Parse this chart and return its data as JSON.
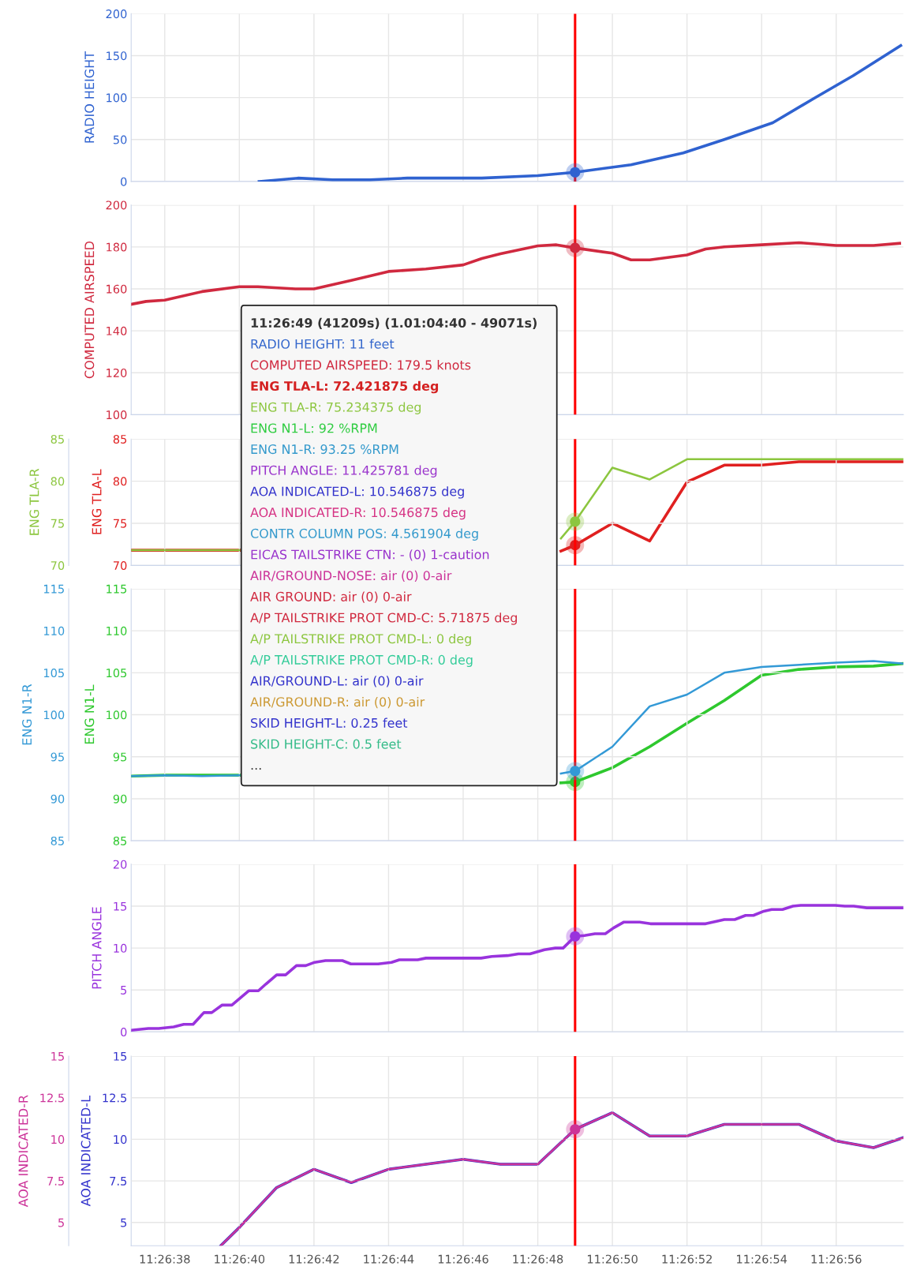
{
  "chart_data": [
    {
      "type": "line",
      "ylabel": "RADIO HEIGHT",
      "xlim": [
        41197.1,
        41217.8
      ],
      "xticks": [
        {
          "value": 41198,
          "label": null
        },
        {
          "value": 41200,
          "label": null
        },
        {
          "value": 41202,
          "label": null
        },
        {
          "value": 41204,
          "label": null
        },
        {
          "value": 41206,
          "label": null
        },
        {
          "value": 41208,
          "label": null
        },
        {
          "value": 41210,
          "label": null
        },
        {
          "value": 41212,
          "label": null
        },
        {
          "value": 41214,
          "label": null
        },
        {
          "value": 41216,
          "label": null
        }
      ],
      "ylim": [
        0,
        200
      ],
      "yticks": [
        0,
        50,
        100,
        150,
        200
      ],
      "grid": true,
      "tick_labels": "y",
      "ref_lines": [
        {
          "axis": "x",
          "value": 41209,
          "color": "#ff0000"
        }
      ],
      "series": [
        {
          "color": "#2f62d0",
          "x": [
            41200.53,
            41201.57,
            41202.5,
            41203.5,
            41204.5,
            41206.5,
            41208,
            41209,
            41210.5,
            41211.9,
            41213,
            41214.3,
            41215.4,
            41216.45,
            41217.73
          ],
          "values": [
            0,
            4,
            2,
            2,
            4,
            4,
            7,
            11,
            20,
            34,
            50,
            70,
            99,
            126,
            162
          ]
        },
        {
          "type": "scatter",
          "color": "#2f62d0",
          "x": [
            41209
          ],
          "values": [
            11
          ]
        }
      ]
    },
    {
      "type": "line",
      "ylabel": "COMPUTED AIRSPEED",
      "xlim": [
        41197.1,
        41217.8
      ],
      "xticks": [
        {
          "value": 41198,
          "label": null
        },
        {
          "value": 41200,
          "label": null
        },
        {
          "value": 41202,
          "label": null
        },
        {
          "value": 41204,
          "label": null
        },
        {
          "value": 41206,
          "label": null
        },
        {
          "value": 41208,
          "label": null
        },
        {
          "value": 41210,
          "label": null
        },
        {
          "value": 41212,
          "label": null
        },
        {
          "value": 41214,
          "label": null
        },
        {
          "value": 41216,
          "label": null
        }
      ],
      "ylim": [
        100,
        200
      ],
      "yticks": [
        100,
        120,
        140,
        160,
        180,
        200
      ],
      "grid": true,
      "tick_labels": "y",
      "ref_lines": [
        {
          "axis": "x",
          "value": 41209,
          "color": "#ff0000"
        }
      ],
      "series": [
        {
          "color": "#d0293f",
          "x": [
            41197.12,
            41197.5,
            41198,
            41199,
            41200,
            41200.5,
            41201.5,
            41202,
            41203,
            41204,
            41205,
            41206,
            41206.5,
            41207,
            41207.6,
            41208,
            41208.5,
            41209,
            41210,
            41210.5,
            41211,
            41212,
            41212.5,
            41213,
            41214,
            41215,
            41216,
            41217,
            41217.7
          ],
          "values": [
            152.7,
            154,
            154.6,
            158.7,
            161,
            161,
            160,
            160,
            164,
            168.3,
            169.5,
            171.4,
            174.5,
            176.7,
            179,
            180.5,
            181,
            179.5,
            177,
            173.8,
            173.8,
            176.2,
            179,
            180,
            181,
            182,
            180.7,
            180.7,
            181.7
          ]
        },
        {
          "type": "scatter",
          "color": "#d0293f",
          "x": [
            41209
          ],
          "values": [
            179.5
          ]
        }
      ],
      "annotations": [
        "11:26:49 (41209s) (1.01:04:40 - 49071s)",
        "RADIO HEIGHT: 11 feet",
        "COMPUTED AIRSPEED: 179.5 knots",
        "ENG TLA-L: 72.421875 deg",
        "ENG TLA-R: 75.234375 deg",
        "ENG N1-L: 92 %RPM",
        "ENG N1-R: 93.25 %RPM",
        "PITCH ANGLE: 11.425781 deg",
        "AOA INDICATED-L: 10.546875 deg",
        "AOA INDICATED-R: 10.546875 deg",
        "CONTR COLUMN POS: 4.561904 deg",
        "EICAS TAILSTRIKE CTN: - (0) 1-caution",
        "AIR/GROUND-NOSE: air (0) 0-air",
        "AIR GROUND: air (0) 0-air",
        "A/P TAILSTRIKE PROT CMD-C: 5.71875 deg",
        "A/P TAILSTRIKE PROT CMD-L: 0 deg",
        "A/P TAILSTRIKE PROT CMD-R: 0 deg",
        "AIR/GROUND-L: air (0) 0-air",
        "AIR/GROUND-R: air (0) 0-air",
        "SKID HEIGHT-L: 0.25 feet",
        "SKID HEIGHT-C: 0.5 feet",
        "..."
      ]
    },
    {
      "type": "line",
      "ylabel": "ENG TLA-R",
      "y2label": "ENG TLA-L",
      "xlim": [
        41197.1,
        41217.8
      ],
      "xticks": [
        {
          "value": 41198,
          "label": null
        },
        {
          "value": 41200,
          "label": null
        },
        {
          "value": 41202,
          "label": null
        },
        {
          "value": 41204,
          "label": null
        },
        {
          "value": 41206,
          "label": null
        },
        {
          "value": 41208,
          "label": null
        },
        {
          "value": 41210,
          "label": null
        },
        {
          "value": 41212,
          "label": null
        },
        {
          "value": 41214,
          "label": null
        },
        {
          "value": 41216,
          "label": null
        }
      ],
      "ylim": [
        70,
        85
      ],
      "yticks": [
        70,
        75,
        80,
        85
      ],
      "y2lim": [
        70,
        85
      ],
      "y2ticks": [
        70,
        75,
        80,
        85
      ],
      "grid": true,
      "tick_labels": "y",
      "ref_lines": [
        {
          "axis": "x",
          "value": 41209,
          "color": "#ff0000"
        }
      ],
      "series": [
        {
          "color": "#8cc63f",
          "x": [
            41197.1,
            41200,
            41204,
            41208.62,
            41209,
            41210,
            41211,
            41212,
            41217.8
          ],
          "values": [
            71.8,
            71.8,
            null,
            73.2,
            75.2,
            81.6,
            80.2,
            82.6,
            82.6
          ]
        },
        {
          "color": "#e02020",
          "axis": "y2",
          "x": [
            41197.1,
            41200,
            41204,
            41208.62,
            41209,
            41210,
            41211,
            41212,
            41213,
            41214,
            41215,
            41217.8
          ],
          "values": [
            71.8,
            71.8,
            null,
            71.7,
            72.4,
            75,
            72.9,
            79.9,
            81.9,
            81.9,
            82.3,
            82.3
          ]
        },
        {
          "type": "scatter",
          "color": "#8cc63f",
          "x": [
            41209
          ],
          "values": [
            75.2
          ]
        },
        {
          "type": "scatter",
          "color": "#e02020",
          "axis": "y2",
          "x": [
            41209
          ],
          "values": [
            72.4
          ]
        }
      ]
    },
    {
      "type": "line",
      "ylabel": "ENG N1-R",
      "y2label": "ENG N1-L",
      "xlim": [
        41197.1,
        41217.8
      ],
      "xticks": [
        {
          "value": 41198,
          "label": null
        },
        {
          "value": 41200,
          "label": null
        },
        {
          "value": 41202,
          "label": null
        },
        {
          "value": 41204,
          "label": null
        },
        {
          "value": 41206,
          "label": null
        },
        {
          "value": 41208,
          "label": null
        },
        {
          "value": 41210,
          "label": null
        },
        {
          "value": 41212,
          "label": null
        },
        {
          "value": 41214,
          "label": null
        },
        {
          "value": 41216,
          "label": null
        }
      ],
      "ylim": [
        85,
        115
      ],
      "yticks": [
        85,
        90,
        95,
        100,
        105,
        110,
        115
      ],
      "y2lim": [
        85,
        115
      ],
      "y2ticks": [
        85,
        90,
        95,
        100,
        105,
        110,
        115
      ],
      "grid": true,
      "tick_labels": "y",
      "ref_lines": [
        {
          "axis": "x",
          "value": 41209,
          "color": "#ff0000"
        }
      ],
      "series": [
        {
          "color": "#3399d6",
          "x": [
            41197.1,
            41198,
            41199,
            41200,
            41204,
            41208.62,
            41209,
            41210,
            41211,
            41212,
            41213,
            41214,
            41216,
            41217,
            41217.8
          ],
          "values": [
            92.7,
            92.8,
            92.7,
            92.8,
            null,
            93.0,
            93.3,
            96.2,
            101,
            102.4,
            105,
            105.7,
            106.2,
            106.4,
            106.1
          ]
        },
        {
          "color": "#2ec82e",
          "axis": "y2",
          "x": [
            41197.1,
            41198,
            41200,
            41204,
            41208.62,
            41209,
            41210,
            41211,
            41212,
            41213,
            41214,
            41215,
            41216,
            41217,
            41217.8
          ],
          "values": [
            92.7,
            92.8,
            92.8,
            null,
            91.9,
            92.0,
            93.7,
            96.2,
            99,
            101.7,
            104.7,
            105.4,
            105.7,
            105.8,
            106.1
          ]
        },
        {
          "type": "scatter",
          "color": "#3399d6",
          "x": [
            41209
          ],
          "values": [
            93.3
          ]
        },
        {
          "type": "scatter",
          "color": "#2ec82e",
          "axis": "y2",
          "x": [
            41209
          ],
          "values": [
            92.0
          ]
        }
      ]
    },
    {
      "type": "line",
      "ylabel": "PITCH ANGLE",
      "xlim": [
        41197.1,
        41217.8
      ],
      "xticks": [
        {
          "value": 41198,
          "label": null
        },
        {
          "value": 41200,
          "label": null
        },
        {
          "value": 41202,
          "label": null
        },
        {
          "value": 41204,
          "label": null
        },
        {
          "value": 41206,
          "label": null
        },
        {
          "value": 41208,
          "label": null
        },
        {
          "value": 41210,
          "label": null
        },
        {
          "value": 41212,
          "label": null
        },
        {
          "value": 41214,
          "label": null
        },
        {
          "value": 41216,
          "label": null
        }
      ],
      "ylim": [
        0,
        20
      ],
      "yticks": [
        0,
        5,
        10,
        15,
        20
      ],
      "grid": true,
      "tick_labels": "y",
      "ref_lines": [
        {
          "axis": "x",
          "value": 41209,
          "color": "#ff0000"
        }
      ],
      "series": [
        {
          "color": "#9933dd",
          "x": [
            41197.1,
            41197.56,
            41197.84,
            41198.24,
            41198.51,
            41198.76,
            41199.05,
            41199.26,
            41199.54,
            41199.8,
            41200.25,
            41200.51,
            41200.71,
            41201.0,
            41201.24,
            41201.53,
            41201.78,
            41202.02,
            41202.31,
            41202.76,
            41202.99,
            41203.72,
            41204.08,
            41204.29,
            41204.78,
            41205.0,
            41206.48,
            41206.77,
            41207.19,
            41207.48,
            41207.79,
            41208.18,
            41208.47,
            41208.68,
            41209,
            41209.25,
            41209.53,
            41209.81,
            41210.03,
            41210.31,
            41210.73,
            41211.02,
            41212.5,
            41212.79,
            41213.0,
            41213.28,
            41213.57,
            41213.78,
            41214.06,
            41214.27,
            41214.56,
            41214.84,
            41215.05,
            41215.97,
            41216.23,
            41216.47,
            41216.82,
            41217.8
          ],
          "values": [
            0.2,
            0.4,
            0.4,
            0.6,
            0.9,
            0.9,
            2.3,
            2.3,
            3.2,
            3.2,
            4.9,
            4.9,
            5.7,
            6.8,
            6.8,
            7.9,
            7.9,
            8.3,
            8.5,
            8.5,
            8.1,
            8.1,
            8.3,
            8.6,
            8.6,
            8.8,
            8.8,
            9.0,
            9.1,
            9.3,
            9.3,
            9.8,
            10.0,
            10.0,
            11.4,
            11.5,
            11.7,
            11.7,
            12.4,
            13.1,
            13.1,
            12.9,
            12.9,
            13.2,
            13.4,
            13.4,
            13.9,
            13.9,
            14.4,
            14.6,
            14.6,
            15.0,
            15.1,
            15.1,
            15.0,
            15.0,
            14.8,
            14.8
          ]
        },
        {
          "type": "scatter",
          "color": "#9933dd",
          "x": [
            41209
          ],
          "values": [
            11.4
          ]
        }
      ]
    },
    {
      "type": "line",
      "ylabel": "AOA INDICATED-R",
      "y2label": "AOA INDICATED-L",
      "xlim": [
        41197.1,
        41217.8
      ],
      "xticks": [
        {
          "value": 41198,
          "label": "11:26:38"
        },
        {
          "value": 41200,
          "label": "11:26:40"
        },
        {
          "value": 41202,
          "label": "11:26:42"
        },
        {
          "value": 41204,
          "label": "11:26:44"
        },
        {
          "value": 41206,
          "label": "11:26:46"
        },
        {
          "value": 41208,
          "label": "11:26:48"
        },
        {
          "value": 41210,
          "label": "11:26:50"
        },
        {
          "value": 41212,
          "label": "11:26:52"
        },
        {
          "value": 41214,
          "label": "11:26:54"
        },
        {
          "value": 41216,
          "label": "11:26:56"
        }
      ],
      "ylim": [
        3.6,
        15
      ],
      "yticks": [
        5,
        7.5,
        10,
        12.5,
        15
      ],
      "y2lim": [
        3.6,
        15
      ],
      "y2ticks": [
        5,
        7.5,
        10,
        12.5,
        15
      ],
      "grid": true,
      "ref_lines": [
        {
          "axis": "x",
          "value": 41209,
          "color": "#ff0000"
        }
      ],
      "series": [
        {
          "color": "#cc3399",
          "x": [
            41199.5,
            41200,
            41201,
            41202,
            41203,
            41204,
            41205,
            41206,
            41207,
            41208,
            41209,
            41210,
            41211,
            41212,
            41213,
            41214,
            41215,
            41216,
            41217,
            41217.8
          ],
          "values": [
            3.6,
            4.7,
            7.1,
            8.2,
            7.4,
            8.2,
            8.5,
            8.8,
            8.5,
            8.5,
            10.6,
            11.6,
            10.2,
            10.2,
            10.9,
            10.9,
            10.9,
            9.9,
            9.5,
            10.1
          ]
        },
        {
          "color": "#3333cc",
          "axis": "y2",
          "x": [
            41199.5,
            41200,
            41201,
            41202,
            41203,
            41204,
            41205,
            41206,
            41207,
            41208,
            41209,
            41210,
            41211,
            41212,
            41213,
            41214,
            41215,
            41216,
            41217,
            41217.8
          ],
          "values": [
            3.6,
            4.7,
            7.1,
            8.2,
            7.4,
            8.2,
            8.5,
            8.8,
            8.5,
            8.5,
            10.6,
            11.6,
            10.2,
            10.2,
            10.9,
            10.9,
            10.9,
            9.9,
            9.5,
            10.1
          ]
        },
        {
          "type": "scatter",
          "color": "#cc3399",
          "x": [
            41209
          ],
          "values": [
            10.6
          ]
        }
      ]
    }
  ]
}
